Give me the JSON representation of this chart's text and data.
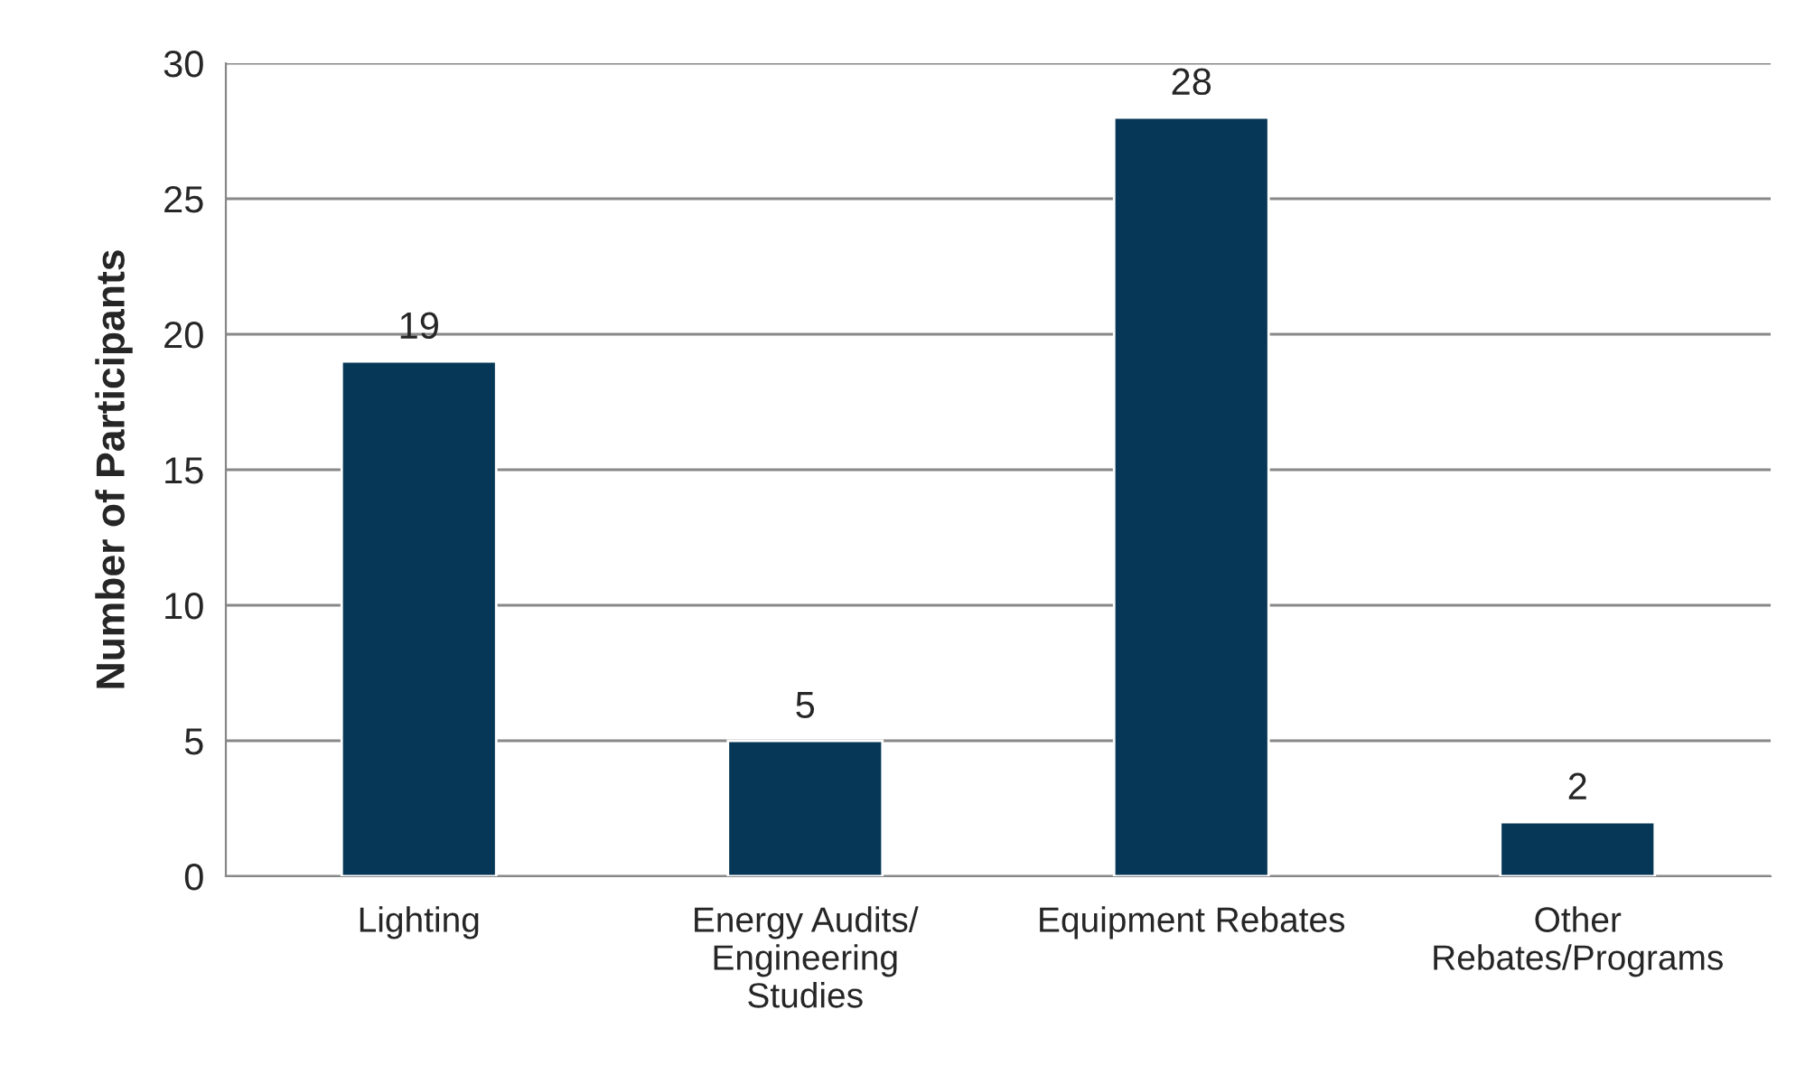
{
  "chart_data": {
    "type": "bar",
    "ylabel": "Number of Participants",
    "categories": [
      "Lighting",
      "Energy Audits/\nEngineering\nStudies",
      "Equipment Rebates",
      "Other\nRebates/Programs"
    ],
    "values": [
      19,
      5,
      28,
      2
    ],
    "color": "#073756",
    "ylim": [
      0,
      30
    ],
    "yticks": [
      0,
      5,
      10,
      15,
      20,
      25,
      30
    ],
    "grid": "y",
    "data_labels": true
  }
}
